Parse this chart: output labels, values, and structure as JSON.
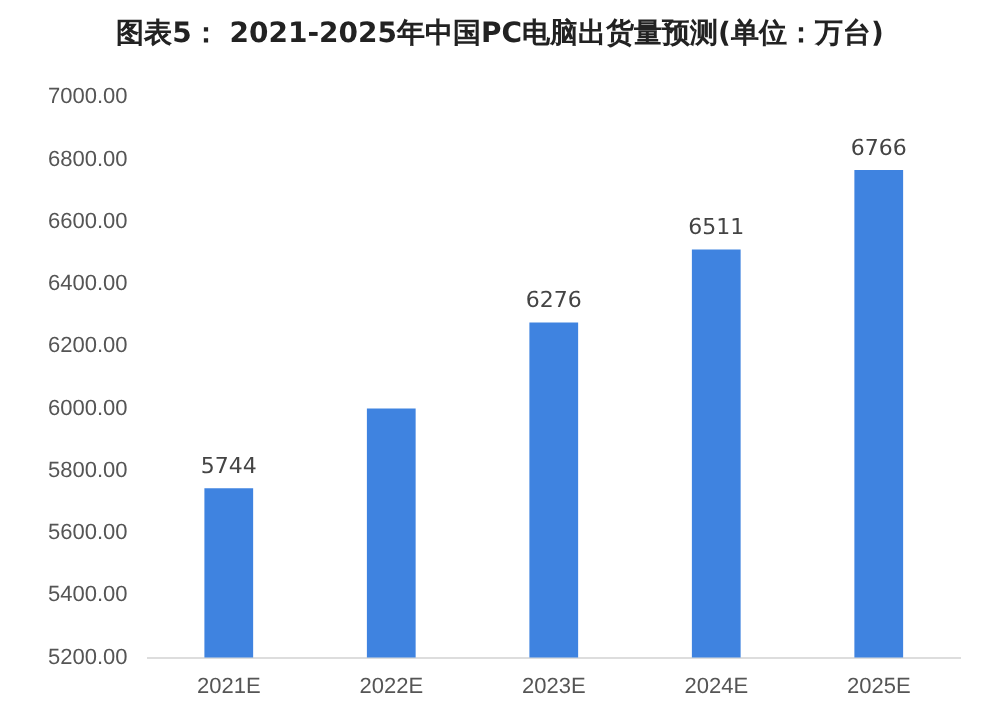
{
  "chart_data": {
    "type": "bar",
    "title": "图表5： 2021-2025年中国PC电脑出货量预测(单位：万台)",
    "categories": [
      "2021E",
      "2022E",
      "2023E",
      "2024E",
      "2025E"
    ],
    "values": [
      5744,
      6000,
      6276,
      6511,
      6766
    ],
    "value_labels": [
      "5744",
      null,
      "6276",
      "6511",
      "6766"
    ],
    "color": "#3f83e0",
    "ylim": [
      5200,
      7000
    ],
    "yticks": [
      {
        "value": 5200,
        "label": "5200.00"
      },
      {
        "value": 5400,
        "label": "5400.00"
      },
      {
        "value": 5600,
        "label": "5600.00"
      },
      {
        "value": 5800,
        "label": "5800.00"
      },
      {
        "value": 6000,
        "label": "6000.00"
      },
      {
        "value": 6200,
        "label": "6200.00"
      },
      {
        "value": 6400,
        "label": "6400.00"
      },
      {
        "value": 6600,
        "label": "6600.00"
      },
      {
        "value": 6800,
        "label": "6800.00"
      },
      {
        "value": 7000,
        "label": "7000.00"
      }
    ],
    "grid": false,
    "legend": false
  }
}
